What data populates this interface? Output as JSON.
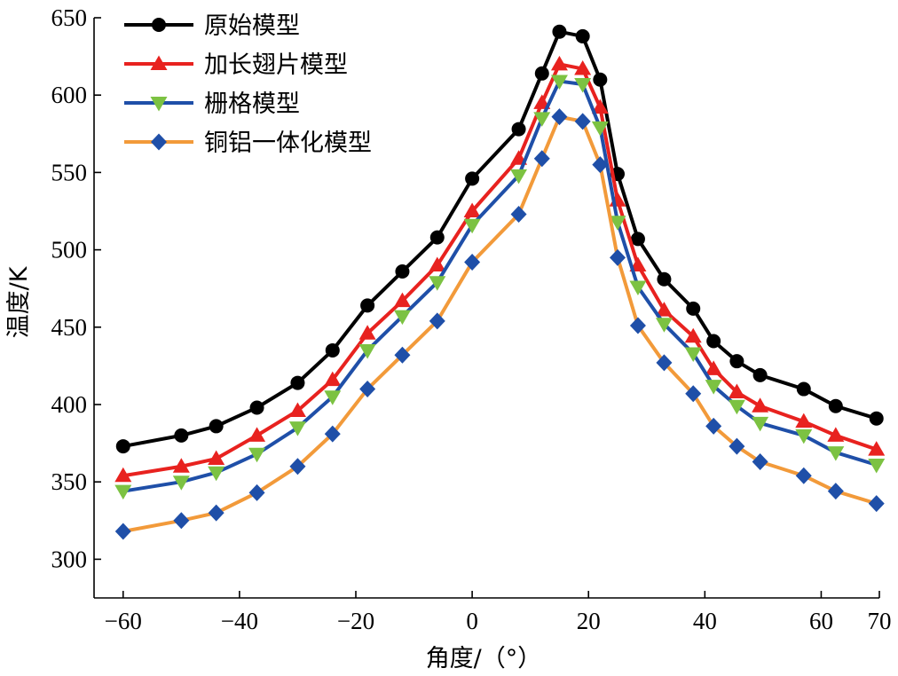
{
  "chart_data": {
    "type": "line",
    "title": "",
    "xlabel": "角度/（°）",
    "ylabel": "温度/K",
    "xlim": [
      -65,
      70
    ],
    "ylim": [
      275,
      650
    ],
    "xticks": [
      -60,
      -40,
      -20,
      0,
      20,
      40,
      60,
      70
    ],
    "xtick_labels": [
      "−60",
      "−40",
      "−20",
      "0",
      "20",
      "40",
      "60",
      "70"
    ],
    "yticks": [
      300,
      350,
      400,
      450,
      500,
      550,
      600,
      650
    ],
    "ytick_labels": [
      "300",
      "350",
      "400",
      "450",
      "500",
      "550",
      "600",
      "650"
    ],
    "grid": false,
    "legend_position": "top-left",
    "x": [
      -60,
      -50,
      -44,
      -37,
      -30,
      -24,
      -18,
      -12,
      -6,
      0,
      8,
      12,
      15,
      19,
      22,
      25,
      28.5,
      33,
      38,
      41.5,
      45.5,
      49.5,
      57,
      62.5,
      69.5
    ],
    "series": [
      {
        "name": "原始模型",
        "color": "#000000",
        "marker": "circle",
        "values": [
          373,
          380,
          386,
          398,
          414,
          435,
          464,
          486,
          508,
          546,
          578,
          614,
          641,
          638,
          610,
          549,
          507,
          481,
          462,
          441,
          428,
          419,
          410,
          399,
          391
        ]
      },
      {
        "name": "加长翅片模型",
        "color": "#e8221f",
        "marker": "triangle-up",
        "values": [
          354,
          360,
          365,
          380,
          396,
          416,
          446,
          467,
          490,
          525,
          559,
          595,
          620,
          617,
          592,
          532,
          490,
          461,
          444,
          423,
          408,
          399,
          389,
          380,
          371
        ]
      },
      {
        "name": "栅格模型",
        "color": "#1f4fa8",
        "marker": "triangle-down",
        "markerColor": "#7cc242",
        "values": [
          344,
          350,
          356,
          368,
          385,
          405,
          435,
          457,
          479,
          516,
          548,
          585,
          609,
          607,
          579,
          518,
          476,
          452,
          433,
          412,
          399,
          388,
          380,
          369,
          361
        ]
      },
      {
        "name": "铜铝一体化模型",
        "color": "#f29a3a",
        "marker": "diamond",
        "markerColor": "#1f4fa8",
        "values": [
          318,
          325,
          330,
          343,
          360,
          381,
          410,
          432,
          454,
          492,
          523,
          559,
          586,
          583,
          555,
          495,
          451,
          427,
          407,
          386,
          373,
          363,
          354,
          344,
          336
        ]
      }
    ]
  }
}
